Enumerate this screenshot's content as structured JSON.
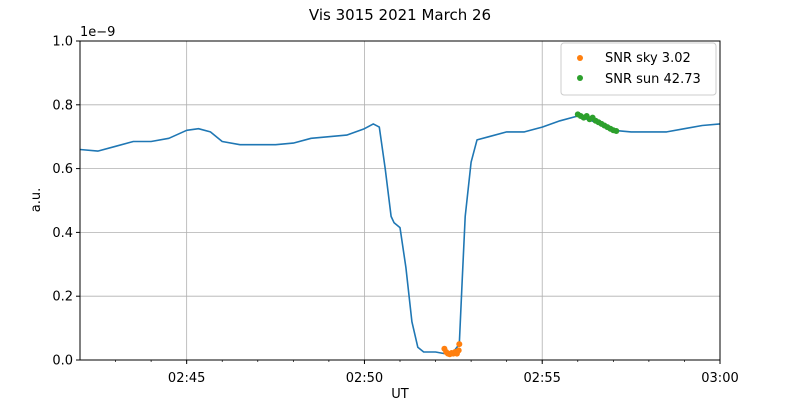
{
  "chart_data": {
    "type": "line",
    "title": "Vis 3015 2021 March 26",
    "xlabel": "UT",
    "ylabel": "a.u.",
    "y_multiplier": "1e−9",
    "xlim": [
      "02:42",
      "03:00"
    ],
    "ylim": [
      0.0,
      1.0
    ],
    "grid": true,
    "legend_position": "top-right",
    "x_ticks": [
      "02:45",
      "02:50",
      "02:55",
      "03:00"
    ],
    "y_ticks": [
      "0.0",
      "0.2",
      "0.4",
      "0.6",
      "0.8",
      "1.0"
    ],
    "series": [
      {
        "type": "line",
        "color": "#1f77b4",
        "x": [
          "02:42:00",
          "02:42:30",
          "02:43:00",
          "02:43:30",
          "02:44:00",
          "02:44:30",
          "02:45:00",
          "02:45:20",
          "02:45:40",
          "02:46:00",
          "02:46:30",
          "02:47:00",
          "02:47:30",
          "02:48:00",
          "02:48:30",
          "02:49:00",
          "02:49:30",
          "02:50:00",
          "02:50:15",
          "02:50:25",
          "02:50:35",
          "02:50:45",
          "02:50:50",
          "02:51:00",
          "02:51:10",
          "02:51:20",
          "02:51:30",
          "02:51:40",
          "02:51:50",
          "02:52:00",
          "02:52:15",
          "02:52:30",
          "02:52:40",
          "02:52:45",
          "02:52:50",
          "02:53:00",
          "02:53:10",
          "02:53:30",
          "02:54:00",
          "02:54:30",
          "02:55:00",
          "02:55:30",
          "02:56:00",
          "02:56:30",
          "02:57:00",
          "02:57:30",
          "02:58:00",
          "02:58:30",
          "02:59:00",
          "02:59:30",
          "03:00:00"
        ],
        "y": [
          0.66,
          0.655,
          0.67,
          0.685,
          0.685,
          0.695,
          0.72,
          0.725,
          0.715,
          0.685,
          0.675,
          0.675,
          0.675,
          0.68,
          0.695,
          0.7,
          0.705,
          0.725,
          0.74,
          0.73,
          0.6,
          0.45,
          0.43,
          0.415,
          0.29,
          0.12,
          0.04,
          0.025,
          0.025,
          0.025,
          0.02,
          0.025,
          0.05,
          0.25,
          0.45,
          0.62,
          0.69,
          0.7,
          0.715,
          0.715,
          0.73,
          0.75,
          0.765,
          0.745,
          0.72,
          0.715,
          0.715,
          0.715,
          0.725,
          0.735,
          0.74
        ]
      },
      {
        "type": "scatter",
        "name": "SNR sky 3.02",
        "color": "#ff7f0e",
        "x": [
          "02:52:15",
          "02:52:18",
          "02:52:21",
          "02:52:24",
          "02:52:27",
          "02:52:30",
          "02:52:33",
          "02:52:36",
          "02:52:39",
          "02:52:40"
        ],
        "y": [
          0.035,
          0.025,
          0.02,
          0.018,
          0.022,
          0.02,
          0.025,
          0.02,
          0.03,
          0.05
        ]
      },
      {
        "type": "scatter",
        "name": "SNR sun 42.73",
        "color": "#2ca02c",
        "x": [
          "02:56:00",
          "02:56:05",
          "02:56:10",
          "02:56:15",
          "02:56:20",
          "02:56:25",
          "02:56:30",
          "02:56:35",
          "02:56:40",
          "02:56:45",
          "02:56:50",
          "02:56:55",
          "02:57:00",
          "02:57:05"
        ],
        "y": [
          0.77,
          0.765,
          0.76,
          0.765,
          0.755,
          0.76,
          0.75,
          0.745,
          0.74,
          0.735,
          0.73,
          0.725,
          0.72,
          0.718
        ]
      }
    ]
  }
}
